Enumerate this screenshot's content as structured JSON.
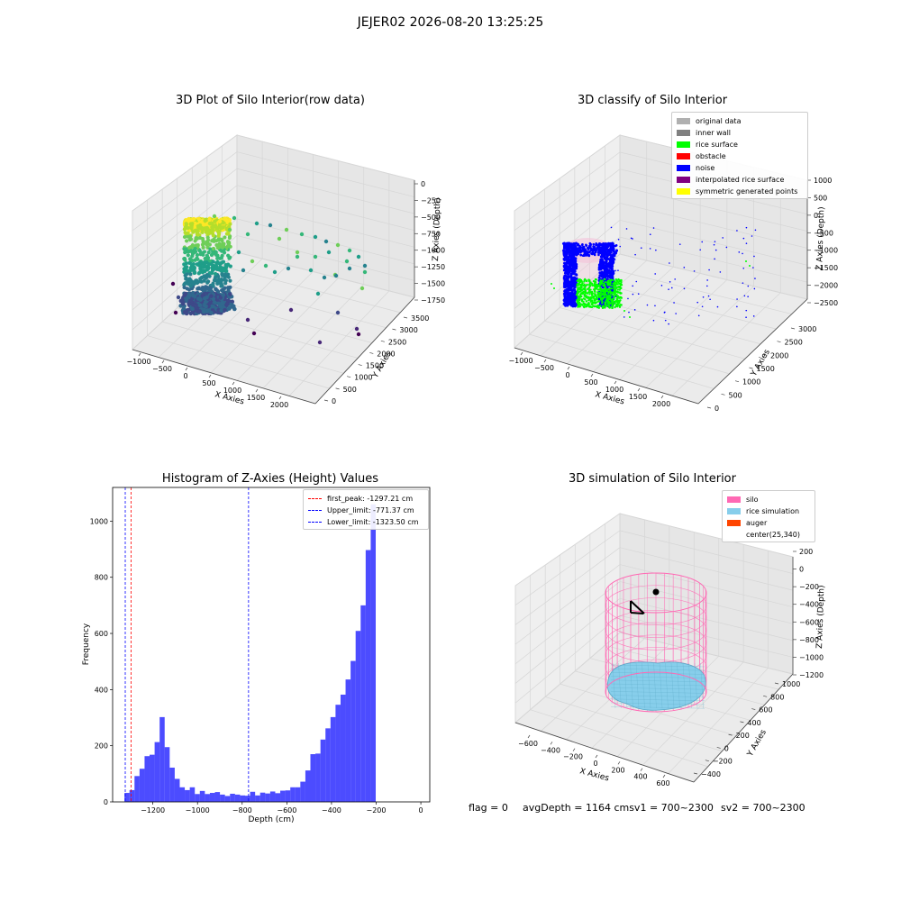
{
  "suptitle": "JEJER02 2026-08-20 13:25:25",
  "panels": {
    "raw": {
      "title": "3D Plot of Silo Interior(row data)",
      "xlabel": "X Axies",
      "ylabel": "Y Axies",
      "zlabel": "Z Axies (Depth)",
      "xticks": [
        "−1000",
        "−500",
        "0",
        "500",
        "1000",
        "1500",
        "2000"
      ],
      "yticks": [
        "0",
        "500",
        "1000",
        "1500",
        "2000",
        "2500",
        "3000",
        "3500"
      ],
      "zticks": [
        "0",
        "−250",
        "−500",
        "−750",
        "−1000",
        "−1250",
        "−1500",
        "−1750"
      ]
    },
    "classify": {
      "title": "3D classify of Silo Interior",
      "xlabel": "X Axies",
      "ylabel": "Y Axies",
      "zlabel": "Z Axies (Depth)",
      "xticks": [
        "−1000",
        "−500",
        "0",
        "500",
        "1000",
        "1500",
        "2000"
      ],
      "yticks": [
        "0",
        "500",
        "1000",
        "1500",
        "2000",
        "2500",
        "3000"
      ],
      "zticks": [
        "1000",
        "500",
        "0",
        "−500",
        "−1000",
        "−1500",
        "−2000",
        "−2500"
      ],
      "legend": [
        {
          "label": "original data",
          "color": "#b0b0b0"
        },
        {
          "label": "inner wall",
          "color": "#808080"
        },
        {
          "label": "rice surface",
          "color": "#00ff00"
        },
        {
          "label": "obstacle",
          "color": "#ff0000"
        },
        {
          "label": "noise",
          "color": "#0000ff"
        },
        {
          "label": "interpolated rice surface",
          "color": "#800080"
        },
        {
          "label": "symmetric generated points",
          "color": "#ffff00"
        }
      ]
    },
    "simulation": {
      "title": "3D simulation of Silo Interior",
      "xlabel": "X Axies",
      "ylabel": "Y Axies",
      "zlabel": "Z Axies (Depth)",
      "xticks": [
        "−600",
        "−400",
        "−200",
        "0",
        "200",
        "400",
        "600"
      ],
      "yticks": [
        "−400",
        "−200",
        "0",
        "200",
        "400",
        "600",
        "800",
        "1000"
      ],
      "zticks": [
        "200",
        "0",
        "−200",
        "−400",
        "−600",
        "−800",
        "−1000",
        "−1200"
      ],
      "legend": [
        {
          "label": "silo",
          "color": "#ff69b4"
        },
        {
          "label": "rice simulation",
          "color": "#87ceeb"
        },
        {
          "label": "auger",
          "color": "#ff4500"
        },
        {
          "label": "center(25,340)",
          "color": ""
        }
      ]
    }
  },
  "chart_data": {
    "type": "bar",
    "title": "Histogram of Z-Axies (Height) Values",
    "xlabel": "Depth (cm)",
    "ylabel": "Frequency",
    "xlim": [
      -1380,
      40
    ],
    "ylim": [
      0,
      1120
    ],
    "xticks": [
      -1200,
      -1000,
      -800,
      -600,
      -400,
      -200,
      0
    ],
    "xticklabels": [
      "−1200",
      "−1000",
      "−800",
      "−600",
      "−400",
      "−200",
      "0"
    ],
    "yticks": [
      0,
      200,
      400,
      600,
      800,
      1000
    ],
    "bin_start": -1327,
    "bin_width": 22.5,
    "counts": [
      32,
      42,
      92,
      118,
      163,
      168,
      213,
      302,
      195,
      122,
      82,
      52,
      42,
      52,
      28,
      39,
      28,
      32,
      35,
      26,
      21,
      29,
      26,
      23,
      22,
      36,
      23,
      33,
      30,
      37,
      31,
      40,
      41,
      52,
      52,
      72,
      112,
      170,
      172,
      222,
      262,
      302,
      346,
      382,
      436,
      502,
      609,
      700,
      897,
      1060
    ],
    "bar_color": "#0000ff",
    "bar_alpha": 0.7,
    "legend": [
      {
        "label": "first_peak: -1297.21 cm",
        "color": "#ff0000",
        "value": -1297.21
      },
      {
        "label": "Upper_limit: -771.37 cm",
        "color": "#0000ff",
        "value": -771.37
      },
      {
        "label": "Lower_limit: -1323.50 cm",
        "color": "#0000ff",
        "value": -1323.5
      }
    ],
    "legend_loc": "upper right"
  },
  "status": {
    "flag": "flag = 0",
    "avg": "avgDepth = 1164 cmsv1 = 700~2300",
    "sv2": "sv2 = 700~2300"
  }
}
